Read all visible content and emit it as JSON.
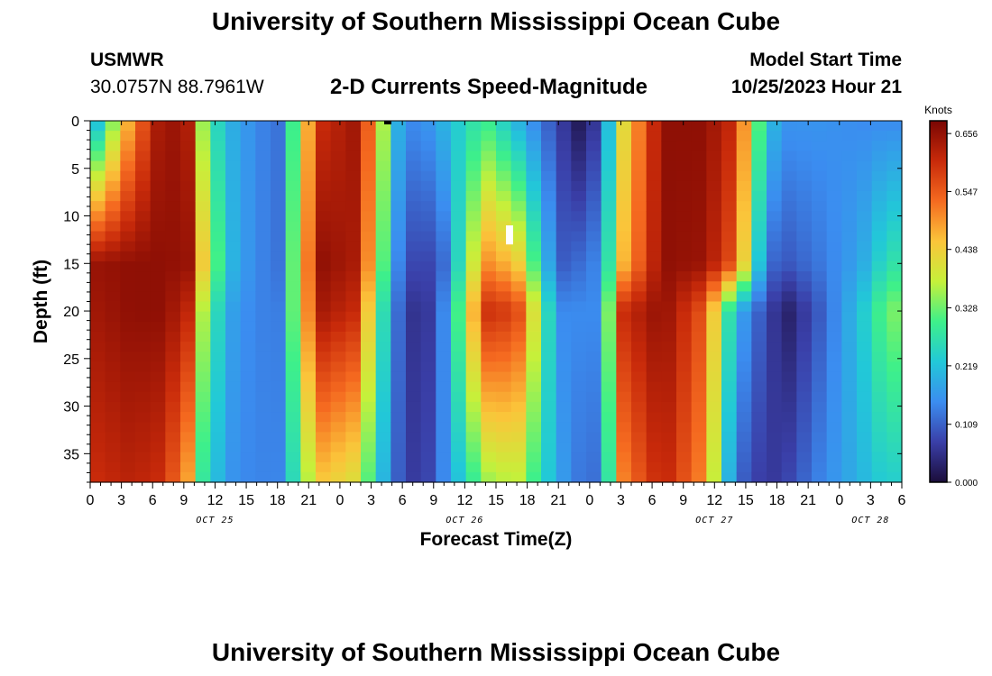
{
  "page": {
    "title": "University of Southern Mississippi Ocean Cube",
    "station": "USMWR",
    "coords": "30.0757N  88.7961W",
    "subtitle": "2-D Currents Speed-Magnitude",
    "model_start_label": "Model Start Time",
    "model_start_value": "10/25/2023 Hour 21"
  },
  "chart_data": {
    "type": "heatmap",
    "title": "2-D Currents Speed-Magnitude",
    "xlabel": "Forecast Time(Z)",
    "ylabel": "Depth (ft)",
    "colorbar_label": "Knots",
    "xlim": [
      0,
      78
    ],
    "ylim": [
      0,
      38
    ],
    "x_ticks": [
      {
        "x": 0,
        "label": "0"
      },
      {
        "x": 3,
        "label": "3"
      },
      {
        "x": 6,
        "label": "6"
      },
      {
        "x": 9,
        "label": "9"
      },
      {
        "x": 12,
        "label": "12"
      },
      {
        "x": 15,
        "label": "15"
      },
      {
        "x": 18,
        "label": "18"
      },
      {
        "x": 21,
        "label": "21"
      },
      {
        "x": 24,
        "label": "0"
      },
      {
        "x": 27,
        "label": "3"
      },
      {
        "x": 30,
        "label": "6"
      },
      {
        "x": 33,
        "label": "9"
      },
      {
        "x": 36,
        "label": "12"
      },
      {
        "x": 39,
        "label": "15"
      },
      {
        "x": 42,
        "label": "18"
      },
      {
        "x": 45,
        "label": "21"
      },
      {
        "x": 48,
        "label": "0"
      },
      {
        "x": 51,
        "label": "3"
      },
      {
        "x": 54,
        "label": "6"
      },
      {
        "x": 57,
        "label": "9"
      },
      {
        "x": 60,
        "label": "12"
      },
      {
        "x": 63,
        "label": "15"
      },
      {
        "x": 66,
        "label": "18"
      },
      {
        "x": 69,
        "label": "21"
      },
      {
        "x": 72,
        "label": "0"
      },
      {
        "x": 75,
        "label": "3"
      },
      {
        "x": 78,
        "label": "6"
      }
    ],
    "date_labels": [
      {
        "x": 12,
        "label": "OCT 25"
      },
      {
        "x": 36,
        "label": "OCT 26"
      },
      {
        "x": 60,
        "label": "OCT 27"
      },
      {
        "x": 75,
        "label": "OCT 28"
      }
    ],
    "y_ticks": [
      0,
      5,
      10,
      15,
      20,
      25,
      30,
      35
    ],
    "colorbar": {
      "min": 0.0,
      "max": 0.68,
      "ticks": [
        "0.000",
        "0.109",
        "0.219",
        "0.328",
        "0.438",
        "0.547",
        "0.656"
      ],
      "tick_values": [
        0.0,
        0.109,
        0.219,
        0.328,
        0.438,
        0.547,
        0.656
      ],
      "colors": [
        "#1b0d3a",
        "#3a3fa8",
        "#3b8df0",
        "#22c8d8",
        "#3ef08a",
        "#c6f03a",
        "#fbc43a",
        "#f56a20",
        "#c82a0a",
        "#7a0603"
      ]
    },
    "grid": {
      "nx": 54,
      "ny": 36,
      "structure_time_hours": [
        0,
        4,
        7,
        10,
        11,
        14,
        18,
        22,
        26,
        27,
        30,
        32,
        34,
        38,
        41,
        45,
        47,
        49,
        51,
        55,
        59,
        62,
        65,
        67,
        70,
        74,
        77,
        78
      ],
      "structure_depths_ft": [
        0,
        15,
        20,
        38
      ],
      "speed_knots": [
        [
          0.15,
          0.65,
          0.64,
          0.6
        ],
        [
          0.5,
          0.66,
          0.66,
          0.62
        ],
        [
          0.66,
          0.66,
          0.66,
          0.6
        ],
        [
          0.62,
          0.65,
          0.6,
          0.45
        ],
        [
          0.3,
          0.4,
          0.32,
          0.25
        ],
        [
          0.18,
          0.18,
          0.16,
          0.15
        ],
        [
          0.12,
          0.12,
          0.13,
          0.14
        ],
        [
          0.6,
          0.66,
          0.64,
          0.45
        ],
        [
          0.65,
          0.63,
          0.6,
          0.4
        ],
        [
          0.5,
          0.45,
          0.38,
          0.28
        ],
        [
          0.15,
          0.1,
          0.08,
          0.08
        ],
        [
          0.15,
          0.07,
          0.04,
          0.06
        ],
        [
          0.2,
          0.12,
          0.15,
          0.15
        ],
        [
          0.3,
          0.5,
          0.6,
          0.35
        ],
        [
          0.2,
          0.45,
          0.58,
          0.38
        ],
        [
          0.08,
          0.1,
          0.15,
          0.18
        ],
        [
          0.02,
          0.12,
          0.15,
          0.13
        ],
        [
          0.08,
          0.15,
          0.15,
          0.12
        ],
        [
          0.4,
          0.45,
          0.6,
          0.5
        ],
        [
          0.66,
          0.66,
          0.66,
          0.62
        ],
        [
          0.66,
          0.65,
          0.55,
          0.5
        ],
        [
          0.6,
          0.55,
          0.2,
          0.12
        ],
        [
          0.22,
          0.12,
          0.08,
          0.06
        ],
        [
          0.16,
          0.1,
          0.03,
          0.08
        ],
        [
          0.16,
          0.13,
          0.1,
          0.14
        ],
        [
          0.15,
          0.18,
          0.22,
          0.2
        ],
        [
          0.15,
          0.28,
          0.35,
          0.25
        ],
        [
          0.15,
          0.25,
          0.3,
          0.2
        ]
      ]
    },
    "missing_markers": [
      {
        "x": 40.3,
        "depth_from": 11,
        "depth_to": 13,
        "color": "#ffffff"
      },
      {
        "x": 28.6,
        "depth_from": 0,
        "depth_to": 0.3,
        "color": "#000000"
      }
    ]
  }
}
